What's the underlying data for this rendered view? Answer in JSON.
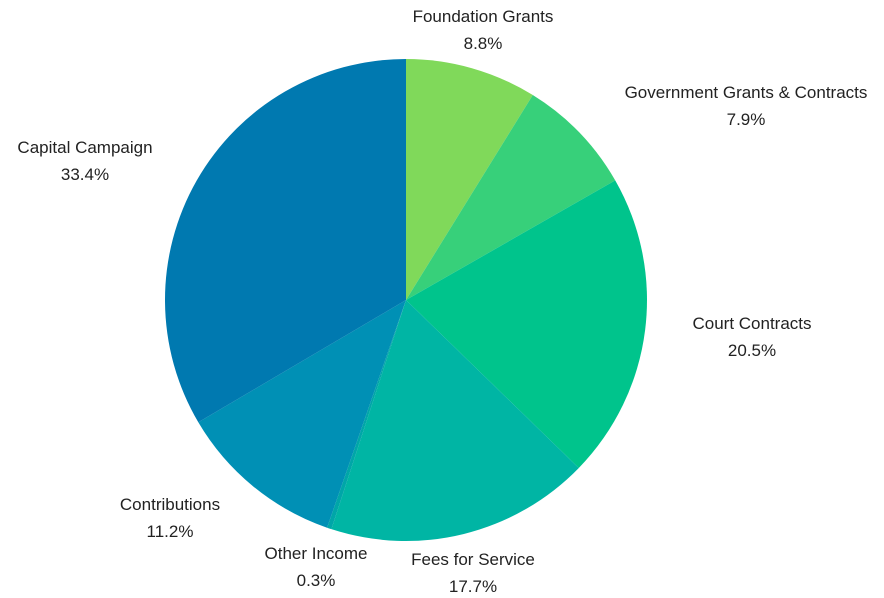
{
  "chart_data": {
    "type": "pie",
    "title": "",
    "start_angle_deg": 0,
    "direction": "clockwise",
    "slices": [
      {
        "label": "Foundation Grants",
        "value": 8.8,
        "value_label": "8.8%",
        "color": "#80d95a"
      },
      {
        "label": "Government Grants & Contracts",
        "value": 7.9,
        "value_label": "7.9%",
        "color": "#37d07a"
      },
      {
        "label": "Court Contracts",
        "value": 20.5,
        "value_label": "20.5%",
        "color": "#00c48c"
      },
      {
        "label": "Fees for Service",
        "value": 17.7,
        "value_label": "17.7%",
        "color": "#00b5a4"
      },
      {
        "label": "Other Income",
        "value": 0.3,
        "value_label": "0.3%",
        "color": "#00a6a8"
      },
      {
        "label": "Contributions",
        "value": 11.2,
        "value_label": "11.2%",
        "color": "#0090b5"
      },
      {
        "label": "Capital Campaign",
        "value": 33.4,
        "value_label": "33.4%",
        "color": "#0079b0"
      }
    ]
  }
}
